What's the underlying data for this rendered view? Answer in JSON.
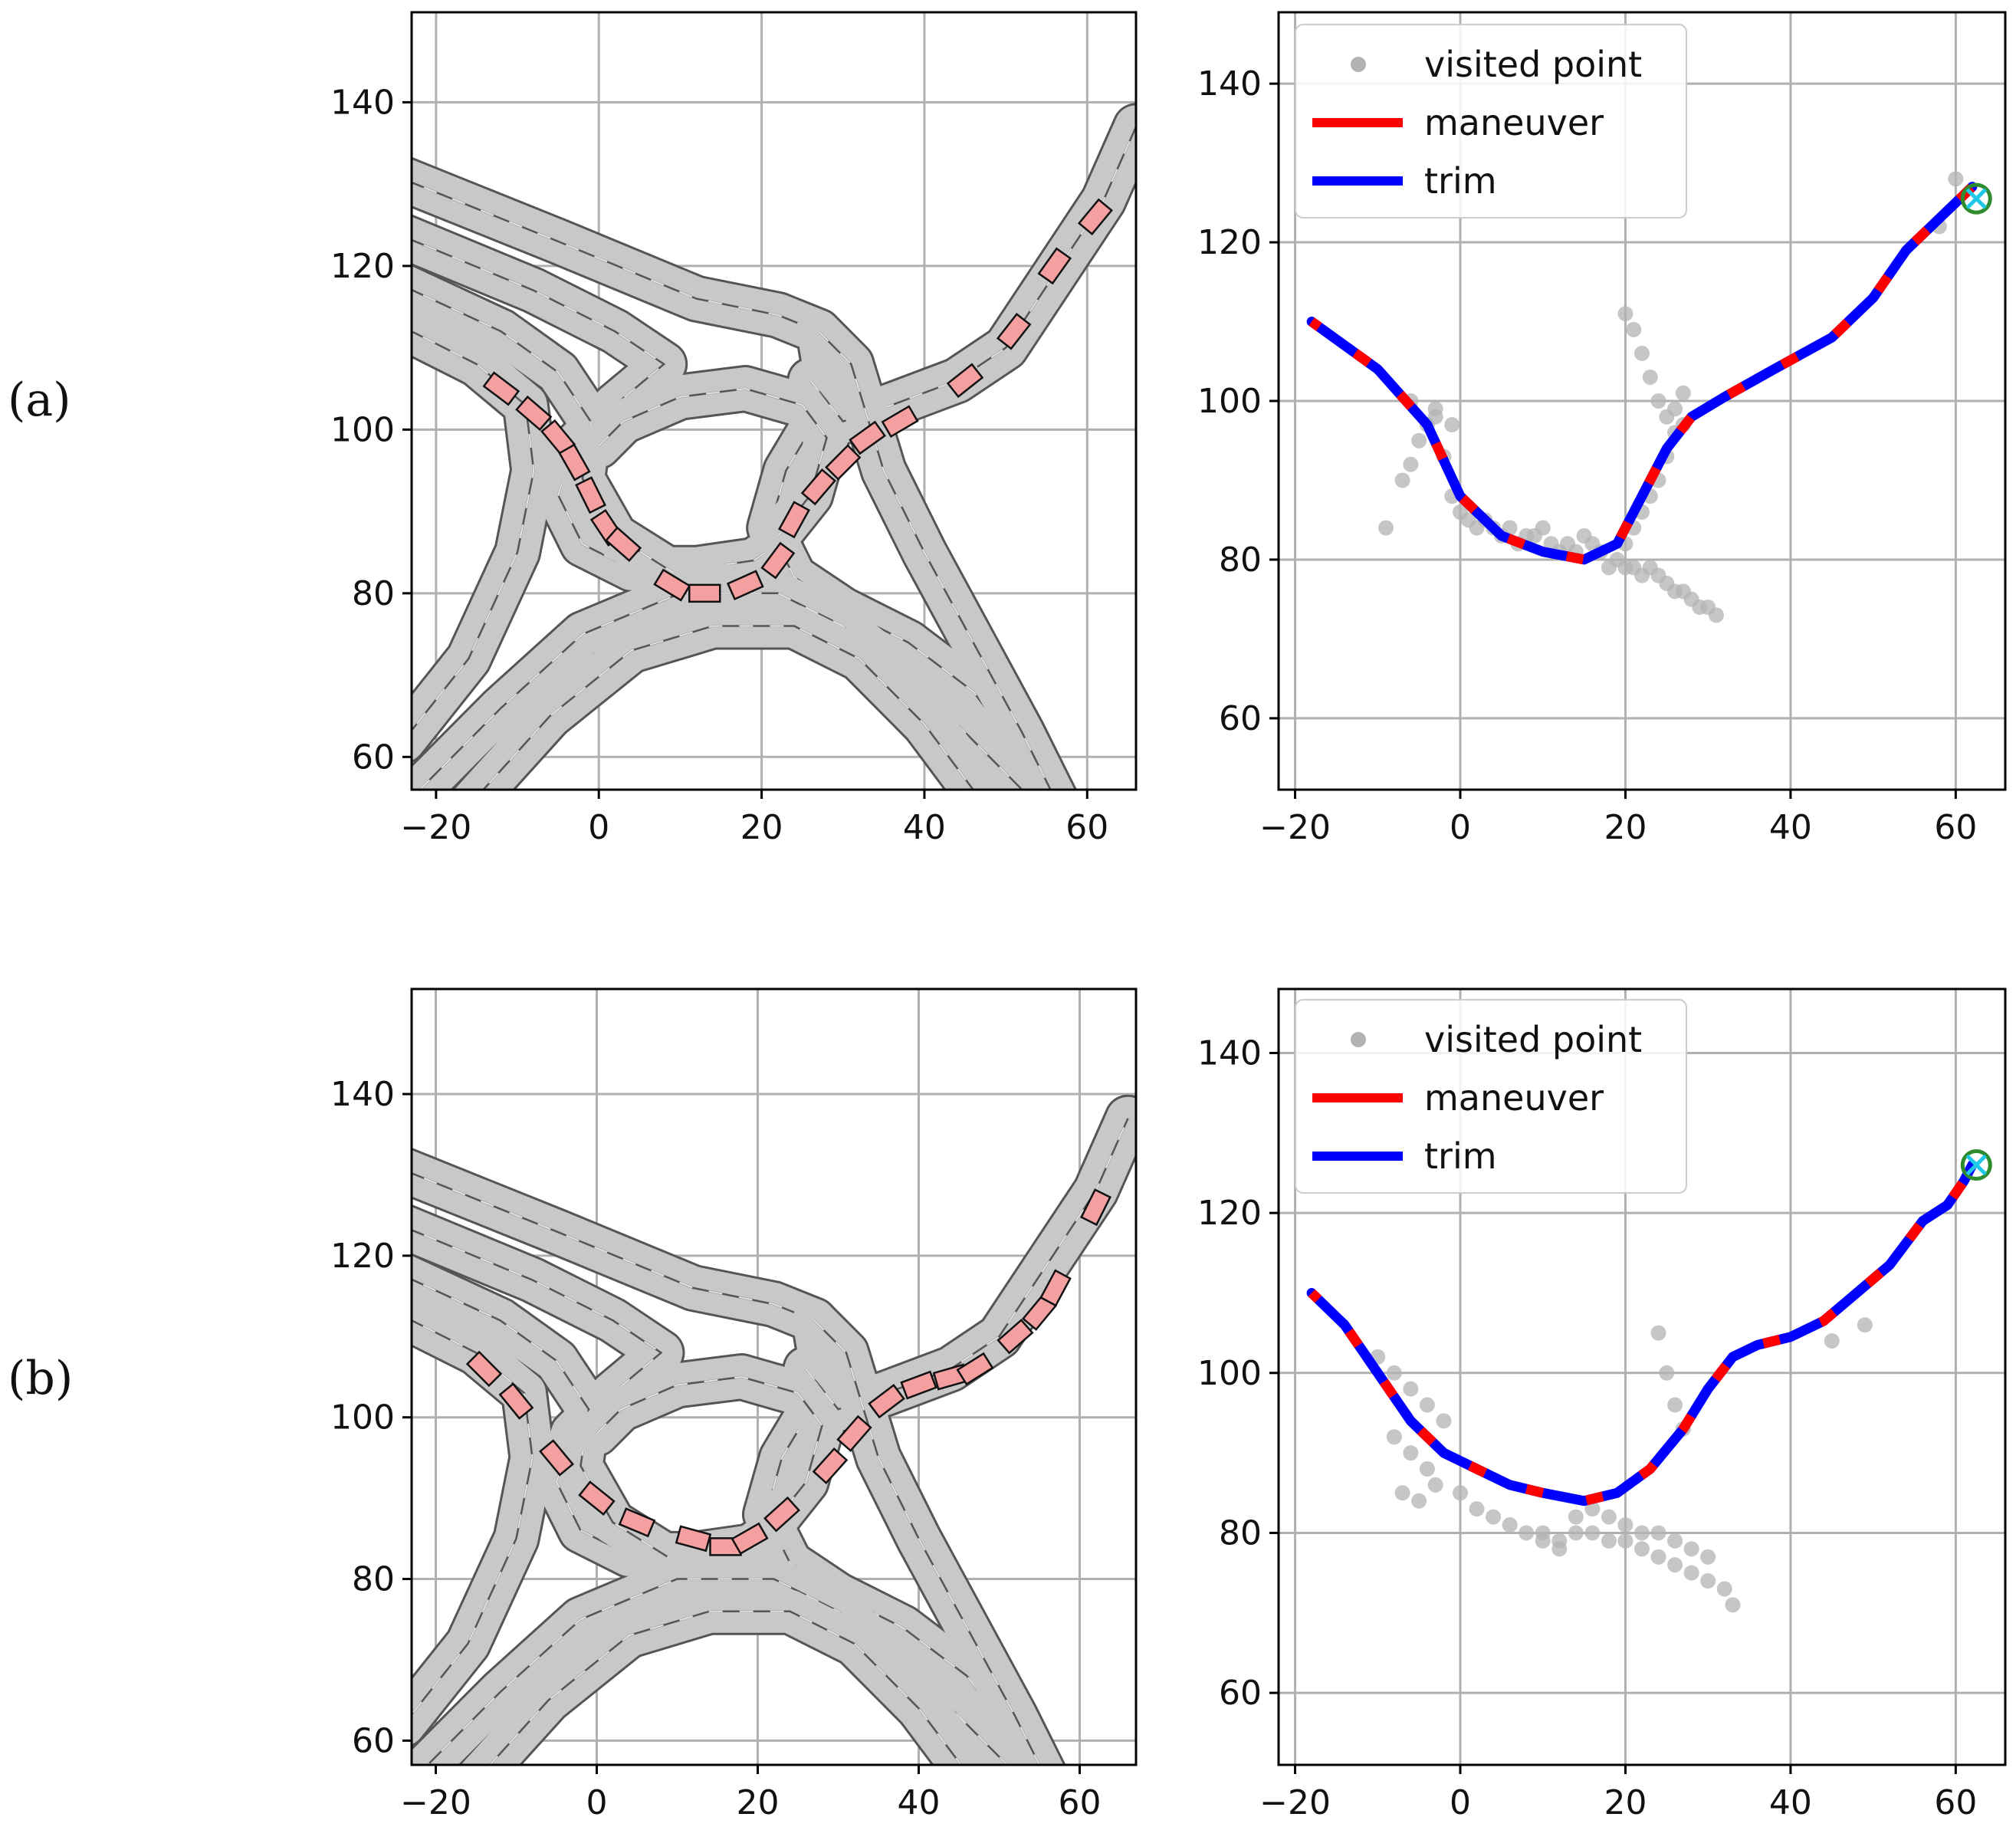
{
  "rows": [
    {
      "label": "(a)"
    },
    {
      "label": "(b)"
    }
  ],
  "legend": {
    "entries": [
      {
        "key": "visited",
        "text": "visited point",
        "color": "#b3b3b3"
      },
      {
        "key": "maneuver",
        "text": "maneuver",
        "color": "#ff0000"
      },
      {
        "key": "trim",
        "text": "trim",
        "color": "#0000ff"
      }
    ]
  },
  "colors": {
    "road_fill": "#c8c8c8",
    "road_edge": "#555555",
    "vehicle_fill": "#f4a0a0",
    "vehicle_edge": "#111111",
    "grid": "#b0b0b0",
    "goal_outer": "#2e8b2e",
    "goal_cross": "#1ec8e6"
  },
  "chart_data": [
    {
      "id": "a-map",
      "type": "scatter",
      "title": "",
      "xlabel": "",
      "ylabel": "",
      "xlim": [
        -23,
        66
      ],
      "ylim": [
        56,
        151
      ],
      "xticks": [
        -20,
        0,
        20,
        40,
        60
      ],
      "yticks": [
        60,
        80,
        100,
        120,
        140
      ],
      "grid": true,
      "series": [
        {
          "kind": "vehicles",
          "x": [
            -12,
            -8,
            -5,
            -3,
            -1,
            1,
            3,
            9,
            13,
            18,
            22,
            24,
            27,
            30,
            33,
            37,
            45,
            51,
            56,
            61
          ],
          "y": [
            105,
            102,
            99,
            96,
            92,
            88,
            86,
            81,
            80,
            81,
            84,
            89,
            93,
            96,
            99,
            101,
            106,
            112,
            120,
            126
          ]
        }
      ]
    },
    {
      "id": "a-search",
      "type": "line",
      "title": "",
      "xlabel": "",
      "ylabel": "",
      "xlim": [
        -22,
        66
      ],
      "ylim": [
        51,
        149
      ],
      "xticks": [
        -20,
        0,
        20,
        40,
        60
      ],
      "yticks": [
        60,
        80,
        100,
        120,
        140
      ],
      "grid": true,
      "legend_position": "top-left",
      "series": [
        {
          "kind": "path",
          "x": [
            -18,
            -10,
            -4,
            0,
            5,
            10,
            15,
            19,
            22,
            25,
            28,
            32,
            38,
            45,
            50,
            54,
            57,
            60,
            62
          ],
          "y": [
            110,
            104,
            97,
            88,
            83,
            81,
            80,
            82,
            88,
            94,
            98,
            100.5,
            104,
            108,
            113,
            119,
            122,
            125,
            127
          ]
        },
        {
          "kind": "visited",
          "x": [
            -9,
            -7,
            -6,
            -5,
            -4,
            -3,
            -2,
            -1,
            0,
            1,
            2,
            3,
            4,
            5,
            6,
            7,
            8,
            9,
            10,
            11,
            12,
            13,
            14,
            15,
            16,
            17,
            18,
            19,
            20,
            21,
            22,
            23,
            24,
            25,
            26,
            27,
            28,
            29,
            30,
            31,
            20,
            21,
            22,
            23,
            24,
            25,
            26,
            26,
            27,
            27,
            25,
            24,
            23,
            22,
            21,
            20,
            -6,
            -3,
            -1,
            60,
            58
          ],
          "y": [
            84,
            90,
            92,
            95,
            97,
            99,
            93,
            88,
            86,
            85,
            84,
            85,
            84,
            83,
            84,
            82,
            83,
            83,
            84,
            82,
            81,
            82,
            81,
            83,
            82,
            81,
            79,
            80,
            79,
            79,
            78,
            79,
            78,
            77,
            76,
            76,
            75,
            74,
            74,
            73,
            111,
            109,
            106,
            103,
            100,
            98,
            96,
            99,
            97,
            101,
            93,
            90,
            88,
            86,
            84,
            82,
            100,
            98,
            97,
            128,
            122
          ]
        }
      ],
      "goal": {
        "x": 62.5,
        "y": 125.5
      }
    },
    {
      "id": "b-map",
      "type": "scatter",
      "title": "",
      "xlabel": "",
      "ylabel": "",
      "xlim": [
        -23,
        67
      ],
      "ylim": [
        57,
        153
      ],
      "xticks": [
        -20,
        0,
        20,
        40,
        60
      ],
      "yticks": [
        60,
        80,
        100,
        120,
        140
      ],
      "grid": true,
      "series": [
        {
          "kind": "vehicles",
          "x": [
            -14,
            -10,
            -5,
            0,
            5,
            12,
            16,
            19,
            23,
            29,
            32,
            36,
            40,
            44,
            47,
            52,
            55,
            57,
            62
          ],
          "y": [
            106,
            102,
            95,
            90,
            87,
            85,
            84,
            85,
            88,
            94,
            98,
            102,
            104,
            105,
            106,
            110,
            113,
            116,
            126
          ]
        }
      ]
    },
    {
      "id": "b-search",
      "type": "line",
      "title": "",
      "xlabel": "",
      "ylabel": "",
      "xlim": [
        -22,
        66
      ],
      "ylim": [
        51,
        148
      ],
      "xticks": [
        -20,
        0,
        20,
        40,
        60
      ],
      "yticks": [
        60,
        80,
        100,
        120,
        140
      ],
      "grid": true,
      "legend_position": "top-left",
      "series": [
        {
          "kind": "path",
          "x": [
            -18,
            -14,
            -10,
            -6,
            -2,
            2,
            6,
            10,
            15,
            19,
            23,
            27,
            30,
            33,
            36,
            40,
            44,
            48,
            52,
            56,
            59,
            61,
            62
          ],
          "y": [
            110,
            106,
            100,
            94,
            90,
            88,
            86,
            85,
            84,
            85,
            88,
            93,
            98,
            102,
            103.5,
            104.5,
            106.5,
            110,
            113.5,
            119,
            121,
            124,
            126
          ]
        },
        {
          "kind": "visited",
          "x": [
            -10,
            -8,
            -6,
            -4,
            -2,
            -8,
            -6,
            -4,
            -7,
            -5,
            -3,
            0,
            2,
            4,
            6,
            8,
            10,
            12,
            14,
            16,
            18,
            20,
            22,
            24,
            26,
            28,
            30,
            32,
            33,
            14,
            16,
            18,
            20,
            22,
            24,
            26,
            28,
            30,
            24,
            25,
            26,
            27,
            45,
            49,
            10,
            12
          ],
          "y": [
            102,
            100,
            98,
            96,
            94,
            92,
            90,
            88,
            85,
            84,
            86,
            85,
            83,
            82,
            81,
            80,
            80,
            79,
            80,
            80,
            79,
            79,
            78,
            77,
            76,
            75,
            74,
            73,
            71,
            82,
            83,
            82,
            81,
            80,
            80,
            79,
            78,
            77,
            105,
            100,
            96,
            93,
            104,
            106,
            79,
            78
          ]
        }
      ],
      "goal": {
        "x": 62.5,
        "y": 126
      }
    }
  ]
}
